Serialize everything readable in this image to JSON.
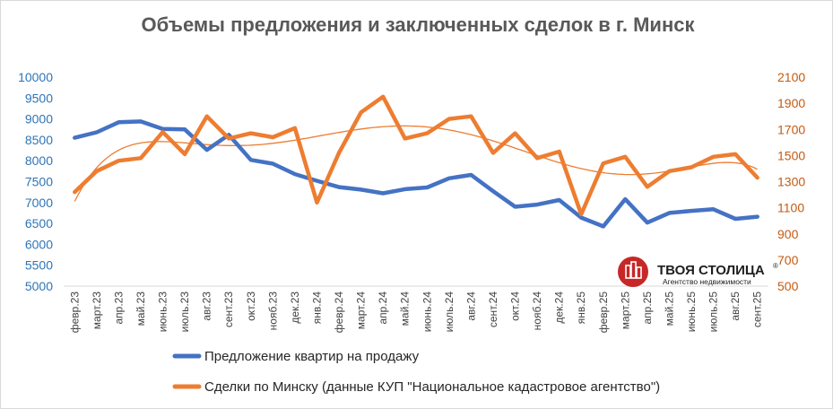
{
  "chart_data": {
    "type": "line",
    "title": "Объемы предложения и заключенных сделок в г. Минск",
    "categories": [
      "февр.23",
      "март.23",
      "апр.23",
      "май.23",
      "июнь.23",
      "июль.23",
      "авг.23",
      "сент.23",
      "окт.23",
      "нояб.23",
      "дек.23",
      "янв.24",
      "февр.24",
      "март.24",
      "апр.24",
      "май.24",
      "июнь.24",
      "июль.24",
      "авг.24",
      "сент.24",
      "окт.24",
      "нояб.24",
      "дек.24",
      "янв.25",
      "февр.25",
      "март.25",
      "апр.25",
      "май.25",
      "июнь.25",
      "июль.25",
      "авг.25",
      "сент.25"
    ],
    "y_left": {
      "min": 5000,
      "max": 10000,
      "ticks": [
        5000,
        5500,
        6000,
        6500,
        7000,
        7500,
        8000,
        8500,
        9000,
        9500,
        10000
      ]
    },
    "y_right": {
      "min": 500,
      "max": 2100,
      "ticks": [
        500,
        700,
        900,
        1100,
        1300,
        1500,
        1700,
        1900,
        2100
      ]
    },
    "series": [
      {
        "name": "Предложение квартир на продажу",
        "axis": "left",
        "color": "#4472c4",
        "values": [
          8550,
          8680,
          8920,
          8940,
          8760,
          8750,
          8260,
          8620,
          8020,
          7930,
          7680,
          7520,
          7370,
          7310,
          7220,
          7320,
          7360,
          7580,
          7660,
          7270,
          6900,
          6950,
          7060,
          6640,
          6430,
          7080,
          6520,
          6750,
          6800,
          6840,
          6610,
          6660
        ]
      },
      {
        "name": "Сделки по Минску (данные КУП \"Национальное кадастровое агентство\")",
        "axis": "right",
        "color": "#ed7d31",
        "values": [
          1220,
          1380,
          1460,
          1480,
          1680,
          1510,
          1800,
          1630,
          1670,
          1640,
          1710,
          1140,
          1520,
          1830,
          1950,
          1630,
          1670,
          1780,
          1800,
          1520,
          1670,
          1480,
          1530,
          1050,
          1440,
          1490,
          1260,
          1380,
          1410,
          1490,
          1510,
          1330
        ],
        "trendline_color": "#ed7d31"
      }
    ]
  },
  "logo": {
    "name": "ТВОЯ СТОЛИЦА",
    "registered": "®",
    "tagline": "Агентство недвижимости",
    "accent_color": "#c62828"
  }
}
